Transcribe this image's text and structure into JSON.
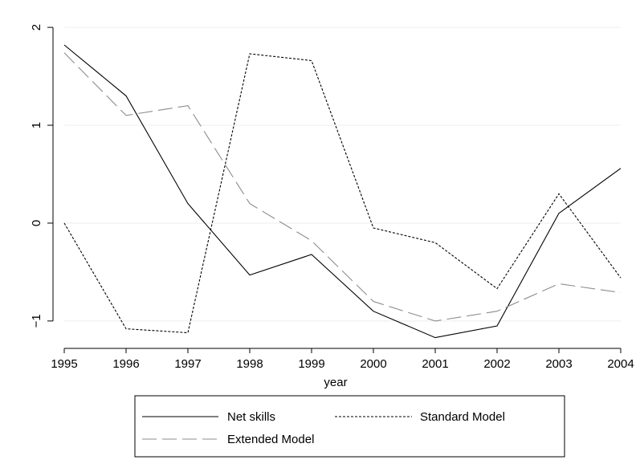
{
  "chart_data": {
    "type": "line",
    "title": "",
    "xlabel": "year",
    "ylabel": "",
    "x": [
      1995,
      1996,
      1997,
      1998,
      1999,
      2000,
      2001,
      2002,
      2003,
      2004
    ],
    "xlim": [
      1995,
      2004
    ],
    "ylim": [
      -1.28,
      2.05
    ],
    "yticks": [
      -1,
      0,
      1,
      2
    ],
    "grid": true,
    "legend_position": "bottom",
    "series": [
      {
        "name": "Net skills",
        "style": "solid",
        "color": "#000000",
        "values": [
          1.82,
          1.3,
          0.2,
          -0.53,
          -0.32,
          -0.9,
          -1.17,
          -1.05,
          0.1,
          0.56
        ]
      },
      {
        "name": "Standard Model",
        "style": "dotted",
        "color": "#000000",
        "values": [
          0.0,
          -1.08,
          -1.12,
          1.73,
          1.66,
          -0.05,
          -0.2,
          -0.67,
          0.3,
          -0.56
        ]
      },
      {
        "name": "Extended Model",
        "style": "longdash",
        "color": "#8c8c8c",
        "values": [
          1.74,
          1.1,
          1.2,
          0.2,
          -0.18,
          -0.8,
          -1.0,
          -0.9,
          -0.62,
          -0.71
        ]
      }
    ]
  }
}
